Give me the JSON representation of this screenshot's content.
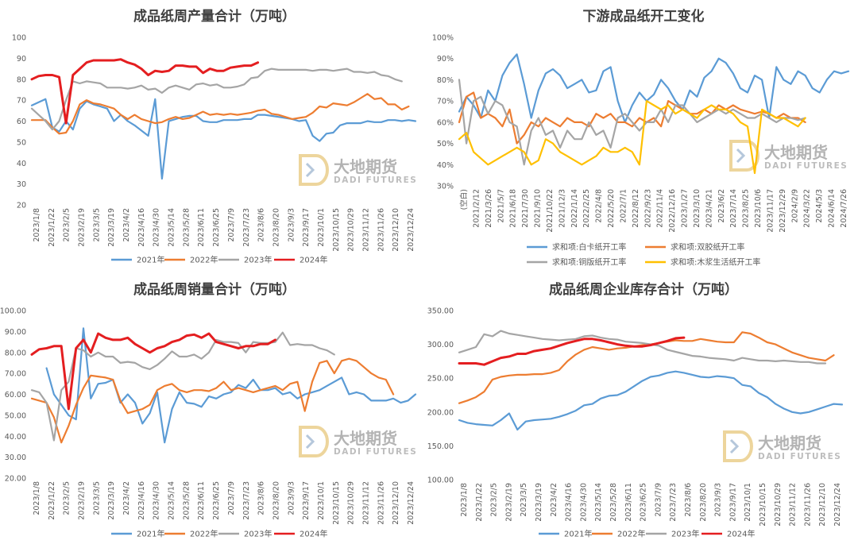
{
  "watermark": {
    "cn": "大地期货",
    "en": "DADI FUTURES"
  },
  "colors": {
    "2021": "#5B9BD5",
    "2022": "#ED7D31",
    "2023": "#A5A5A5",
    "2024": "#E41E20",
    "white_card": "#5B9BD5",
    "dual_offset": "#ED7D31",
    "coated": "#A5A5A5",
    "tissue": "#FFC000"
  },
  "chart_data": [
    {
      "id": "production",
      "type": "line",
      "title": "成品纸周产量合计（万吨）",
      "ylim": [
        20,
        100
      ],
      "yticks": [
        "20",
        "30",
        "40",
        "50",
        "60",
        "70",
        "80",
        "90",
        "100"
      ],
      "x_labels": [
        "2023/1/8",
        "2023/1/22",
        "2023/2/5",
        "2023/2/19",
        "2023/3/5",
        "2023/3/19",
        "2023/4/2",
        "2023/4/16",
        "2023/4/30",
        "2023/5/14",
        "2023/5/28",
        "2023/6/11",
        "2023/6/25",
        "2023/7/9",
        "2023/7/23",
        "2023/8/6",
        "2023/8/20",
        "2023/9/3",
        "2023/9/17",
        "2023/10/1",
        "2023/10/15",
        "2023/10/29",
        "2023/11/12",
        "2023/11/26",
        "2023/12/10",
        "2023/12/24"
      ],
      "series": [
        {
          "name": "2021年",
          "color": "2021",
          "values": [
            67.5,
            69,
            70.5,
            57,
            55,
            60,
            56,
            66,
            69.5,
            68,
            67,
            66,
            60,
            63,
            60,
            58,
            55.5,
            53,
            70.5,
            32.5,
            60,
            61,
            62,
            62.5,
            62.5,
            60,
            59.5,
            59.5,
            60.5,
            60.5,
            60.5,
            61,
            61,
            63,
            63,
            62.5,
            62,
            61.5,
            61,
            60,
            60.5,
            53,
            50.5,
            54,
            54.5,
            58,
            59,
            59,
            59,
            60,
            59.5,
            59.5,
            60.5,
            60.5,
            60,
            60.5,
            60
          ]
        },
        {
          "name": "2022年",
          "color": "2022",
          "values": [
            60.5,
            60.5,
            60.5,
            57,
            54,
            54.5,
            60,
            68,
            70,
            68.5,
            68,
            67,
            66,
            63,
            61,
            63,
            61,
            60,
            59,
            59.5,
            61,
            62,
            61,
            61.5,
            63,
            64.5,
            63,
            63.5,
            63,
            63.5,
            63,
            63.5,
            64,
            65,
            65.5,
            63.5,
            63,
            62,
            61,
            61.5,
            62,
            64,
            67,
            66.5,
            68.5,
            68,
            67.5,
            69,
            71,
            73,
            70.5,
            71,
            68,
            68,
            65.5,
            67
          ]
        },
        {
          "name": "2023年",
          "color": "2023",
          "values": [
            66,
            63,
            60,
            56,
            60,
            70,
            79,
            78,
            79,
            78.5,
            78,
            76,
            76,
            76,
            75.5,
            76,
            77,
            75,
            75.5,
            73.5,
            76,
            77,
            76,
            75,
            77.5,
            78,
            77,
            77.5,
            76,
            76,
            76.5,
            77.5,
            80.5,
            81,
            84,
            85,
            84.5,
            84.5,
            84.5,
            84.5,
            84.5,
            84,
            84.5,
            84.5,
            84,
            84.5,
            85,
            83.5,
            83.5,
            83,
            83.5,
            82,
            81.5,
            80,
            79
          ]
        },
        {
          "name": "2024年",
          "color": "2024",
          "values": [
            80,
            81.5,
            82,
            82,
            81,
            59,
            82,
            85,
            88,
            89,
            89,
            89,
            89,
            89.5,
            88,
            87,
            85,
            82,
            84,
            83.5,
            84,
            86.5,
            86.5,
            86,
            86,
            83,
            85,
            84,
            84,
            85.5,
            86,
            86.5,
            86.5,
            88
          ]
        }
      ]
    },
    {
      "id": "operating_rate",
      "type": "line",
      "title": "下游成品纸开工变化",
      "ylim": [
        30,
        100
      ],
      "yticks": [
        "30%",
        "40%",
        "50%",
        "60%",
        "70%",
        "80%",
        "90%",
        "100%"
      ],
      "x_labels": [
        "(空白)",
        "2021/2/12",
        "2021/3/26",
        "2021/5/7",
        "2021/6/18",
        "2021/7/30",
        "2021/9/10",
        "2021/10/22",
        "2021/12/3",
        "2022/1/14",
        "2022/2/25",
        "2022/4/8",
        "2022/5/20",
        "2022/7/1",
        "2022/8/12",
        "2022/9/23",
        "2022/11/4",
        "2022/12/16",
        "2023/1/27",
        "2023/3/10",
        "2023/4/21",
        "2023/6/2",
        "2023/7/14",
        "2023/8/25",
        "2023/10/6",
        "2023/11/17",
        "2023/12/29",
        "2024/2/9",
        "2024/3/22",
        "2024/5/3",
        "2024/6/14",
        "2024/7/26"
      ],
      "series": [
        {
          "name": "求和项:白卡纸开工率",
          "color": "white_card",
          "values": [
            65,
            72,
            68,
            62,
            75,
            70,
            82,
            88,
            92,
            78,
            62,
            75,
            83,
            85,
            82,
            76,
            78,
            80,
            74,
            75,
            84,
            86,
            70,
            60,
            68,
            74,
            70,
            73,
            80,
            76,
            70,
            66,
            75,
            72,
            81,
            84,
            90,
            88,
            83,
            76,
            74,
            82,
            80,
            62,
            86,
            80,
            78,
            84,
            82,
            76,
            74,
            80,
            84,
            83,
            84
          ]
        },
        {
          "name": "求和项:双胶纸开工率",
          "color": "dual_offset",
          "values": [
            60,
            72,
            74,
            62,
            64,
            62,
            58,
            66,
            50,
            54,
            60,
            58,
            62,
            60,
            58,
            62,
            60,
            60,
            58,
            64,
            62,
            64,
            60,
            60,
            58,
            62,
            60,
            62,
            58,
            70,
            68,
            66,
            64,
            64,
            66,
            64,
            68,
            66,
            68,
            66,
            65,
            64,
            65,
            64,
            62,
            64,
            62,
            62,
            60
          ]
        },
        {
          "name": "求和项:铜版纸开工率",
          "color": "coated",
          "values": [
            80,
            50,
            70,
            72,
            64,
            70,
            68,
            60,
            58,
            40,
            56,
            62,
            54,
            56,
            48,
            56,
            52,
            52,
            60,
            54,
            56,
            48,
            62,
            64,
            60,
            56,
            60,
            60,
            66,
            60,
            68,
            68,
            64,
            60,
            62,
            64,
            66,
            64,
            66,
            64,
            62,
            62,
            64,
            62,
            60,
            62,
            62,
            61,
            62
          ]
        },
        {
          "name": "求和项:木浆生活纸开工率",
          "color": "tissue",
          "values": [
            52,
            55,
            46,
            43,
            40,
            42,
            44,
            46,
            48,
            46,
            40,
            42,
            52,
            50,
            46,
            44,
            42,
            40,
            42,
            44,
            48,
            46,
            46,
            48,
            46,
            40,
            70,
            68,
            66,
            68,
            64,
            66,
            64,
            62,
            66,
            68,
            66,
            66,
            64,
            60,
            58,
            36,
            66,
            64,
            62,
            62,
            60,
            58,
            62
          ]
        }
      ]
    },
    {
      "id": "sales",
      "type": "line",
      "title": "成品纸周销量合计（万吨）",
      "ylim": [
        20,
        100
      ],
      "yticks": [
        "20.00",
        "30.00",
        "40.00",
        "50.00",
        "60.00",
        "70.00",
        "80.00",
        "90.00",
        "100.00"
      ],
      "x_labels": [
        "2023/1/8",
        "2023/1/22",
        "2023/2/5",
        "2023/2/19",
        "2023/3/5",
        "2023/3/19",
        "2023/4/2",
        "2023/4/16",
        "2023/4/30",
        "2023/5/14",
        "2023/5/28",
        "2023/6/11",
        "2023/6/25",
        "2023/7/9",
        "2023/7/23",
        "2023/8/6",
        "2023/8/20",
        "2023/9/3",
        "2023/9/17",
        "2023/10/1",
        "2023/10/15",
        "2023/10/29",
        "2023/11/12",
        "2023/11/26",
        "2023/12/10",
        "2023/12/24"
      ],
      "series": [
        {
          "name": "2021年",
          "color": "2021",
          "values": [
            null,
            null,
            72.5,
            60,
            55,
            50,
            48,
            91.5,
            58,
            65,
            65.5,
            67,
            56,
            60,
            56,
            46,
            51,
            61,
            37,
            53,
            61,
            56,
            55.5,
            54,
            59,
            58,
            60,
            61,
            64.5,
            63,
            67,
            62,
            62,
            63,
            60,
            61,
            58,
            60,
            61,
            62,
            64,
            66,
            68,
            60,
            61,
            60,
            57,
            57,
            57,
            58,
            56,
            57,
            60
          ]
        },
        {
          "name": "2022年",
          "color": "2022",
          "values": [
            58,
            57,
            56,
            49,
            37,
            45,
            55,
            63,
            69,
            68.5,
            68,
            67,
            57,
            51,
            52,
            53,
            55,
            62,
            64,
            65,
            62,
            61,
            62,
            62,
            61.5,
            63,
            66,
            62,
            63,
            62,
            61,
            62,
            63,
            64,
            62,
            65,
            66,
            52,
            66,
            75,
            76,
            70,
            76,
            77,
            76,
            73,
            70,
            68,
            67,
            60
          ]
        },
        {
          "name": "2023年",
          "color": "2023",
          "values": [
            62,
            61,
            56,
            38,
            62,
            66,
            82,
            81,
            78,
            80,
            78,
            78,
            75,
            75.5,
            75,
            73,
            72,
            74,
            77,
            80.5,
            78,
            78,
            79,
            77,
            80,
            86,
            85,
            85,
            84.5,
            80,
            85,
            84.5,
            84.5,
            85,
            89.5,
            83.5,
            84,
            83.5,
            83.5,
            82,
            81,
            79
          ]
        },
        {
          "name": "2024年",
          "color": "2024",
          "values": [
            79,
            81.5,
            82,
            83,
            83,
            53,
            82,
            86,
            80,
            89,
            87,
            86,
            86,
            87,
            84,
            82,
            80,
            82,
            83,
            85,
            86,
            88,
            88.5,
            87,
            89,
            85,
            84,
            83,
            82,
            83,
            83,
            84,
            84,
            86
          ]
        }
      ]
    },
    {
      "id": "inventory",
      "type": "line",
      "title": "成品纸周企业库存合计（万吨）",
      "ylim": [
        100,
        350
      ],
      "yticks": [
        "100.00",
        "150.00",
        "200.00",
        "250.00",
        "300.00",
        "350.00"
      ],
      "x_labels": [
        "2023/1/8",
        "2023/1/22",
        "2023/2/5",
        "2023/2/19",
        "2023/3/5",
        "2023/3/19",
        "2023/4/2",
        "2023/4/16",
        "2023/4/30",
        "2023/5/14",
        "2023/5/28",
        "2023/6/11",
        "2023/6/25",
        "2023/7/9",
        "2023/7/23",
        "2023/8/6",
        "2023/8/20",
        "2023/9/3",
        "2023/9/17",
        "2023/10/1",
        "2023/10/15",
        "2023/10/29",
        "2023/11/12",
        "2023/11/26",
        "2023/12/10",
        "2023/12/24"
      ],
      "series": [
        {
          "name": "2021年",
          "color": "2021",
          "values": [
            188,
            184,
            182,
            181,
            180,
            188,
            198,
            174,
            186,
            188,
            189,
            190,
            193,
            197,
            202,
            210,
            212,
            220,
            224,
            225,
            230,
            238,
            246,
            252,
            254,
            258,
            260,
            258,
            255,
            252,
            251,
            253,
            252,
            250,
            240,
            238,
            228,
            222,
            212,
            205,
            200,
            198,
            200,
            204,
            208,
            212,
            211
          ]
        },
        {
          "name": "2022年",
          "color": "2022",
          "values": [
            213,
            217,
            222,
            230,
            248,
            252,
            254,
            255,
            255,
            256,
            256,
            258,
            262,
            275,
            285,
            292,
            296,
            294,
            292,
            294,
            295,
            297,
            299,
            300,
            302,
            304,
            306,
            305,
            305,
            308,
            306,
            304,
            303,
            303,
            318,
            316,
            310,
            303,
            300,
            294,
            288,
            284,
            280,
            278,
            276,
            284
          ]
        },
        {
          "name": "2023年",
          "color": "2023",
          "values": [
            288,
            292,
            296,
            315,
            312,
            320,
            316,
            314,
            312,
            310,
            308,
            307,
            306,
            307,
            308,
            312,
            313,
            310,
            308,
            307,
            304,
            303,
            302,
            300,
            298,
            292,
            289,
            286,
            283,
            282,
            280,
            279,
            278,
            276,
            280,
            278,
            276,
            276,
            275,
            276,
            275,
            274,
            274,
            272,
            272
          ]
        },
        {
          "name": "2024年",
          "color": "2024",
          "values": [
            272,
            272,
            272,
            270,
            275,
            280,
            282,
            286,
            286,
            290,
            292,
            294,
            298,
            302,
            305,
            308,
            308,
            306,
            303,
            300,
            298,
            297,
            297,
            299,
            302,
            305,
            309,
            310
          ]
        }
      ]
    }
  ],
  "legends": [
    [
      {
        "label": "2021年",
        "color": "2021"
      },
      {
        "label": "2022年",
        "color": "2022"
      },
      {
        "label": "2023年",
        "color": "2023"
      },
      {
        "label": "2024年",
        "color": "2024"
      }
    ],
    [
      {
        "label": "求和项:白卡纸开工率",
        "color": "white_card"
      },
      {
        "label": "求和项:双胶纸开工率",
        "color": "dual_offset"
      },
      {
        "label": "求和项:铜版纸开工率",
        "color": "coated"
      },
      {
        "label": "求和项:木浆生活纸开工率",
        "color": "tissue"
      }
    ],
    [
      {
        "label": "2021年",
        "color": "2021"
      },
      {
        "label": "2022年",
        "color": "2022"
      },
      {
        "label": "2023年",
        "color": "2023"
      },
      {
        "label": "2024年",
        "color": "2024"
      }
    ],
    [
      {
        "label": "2021年",
        "color": "2021"
      },
      {
        "label": "2022年",
        "color": "2022"
      },
      {
        "label": "2023年",
        "color": "2023"
      },
      {
        "label": "2024年",
        "color": "2024"
      }
    ]
  ]
}
